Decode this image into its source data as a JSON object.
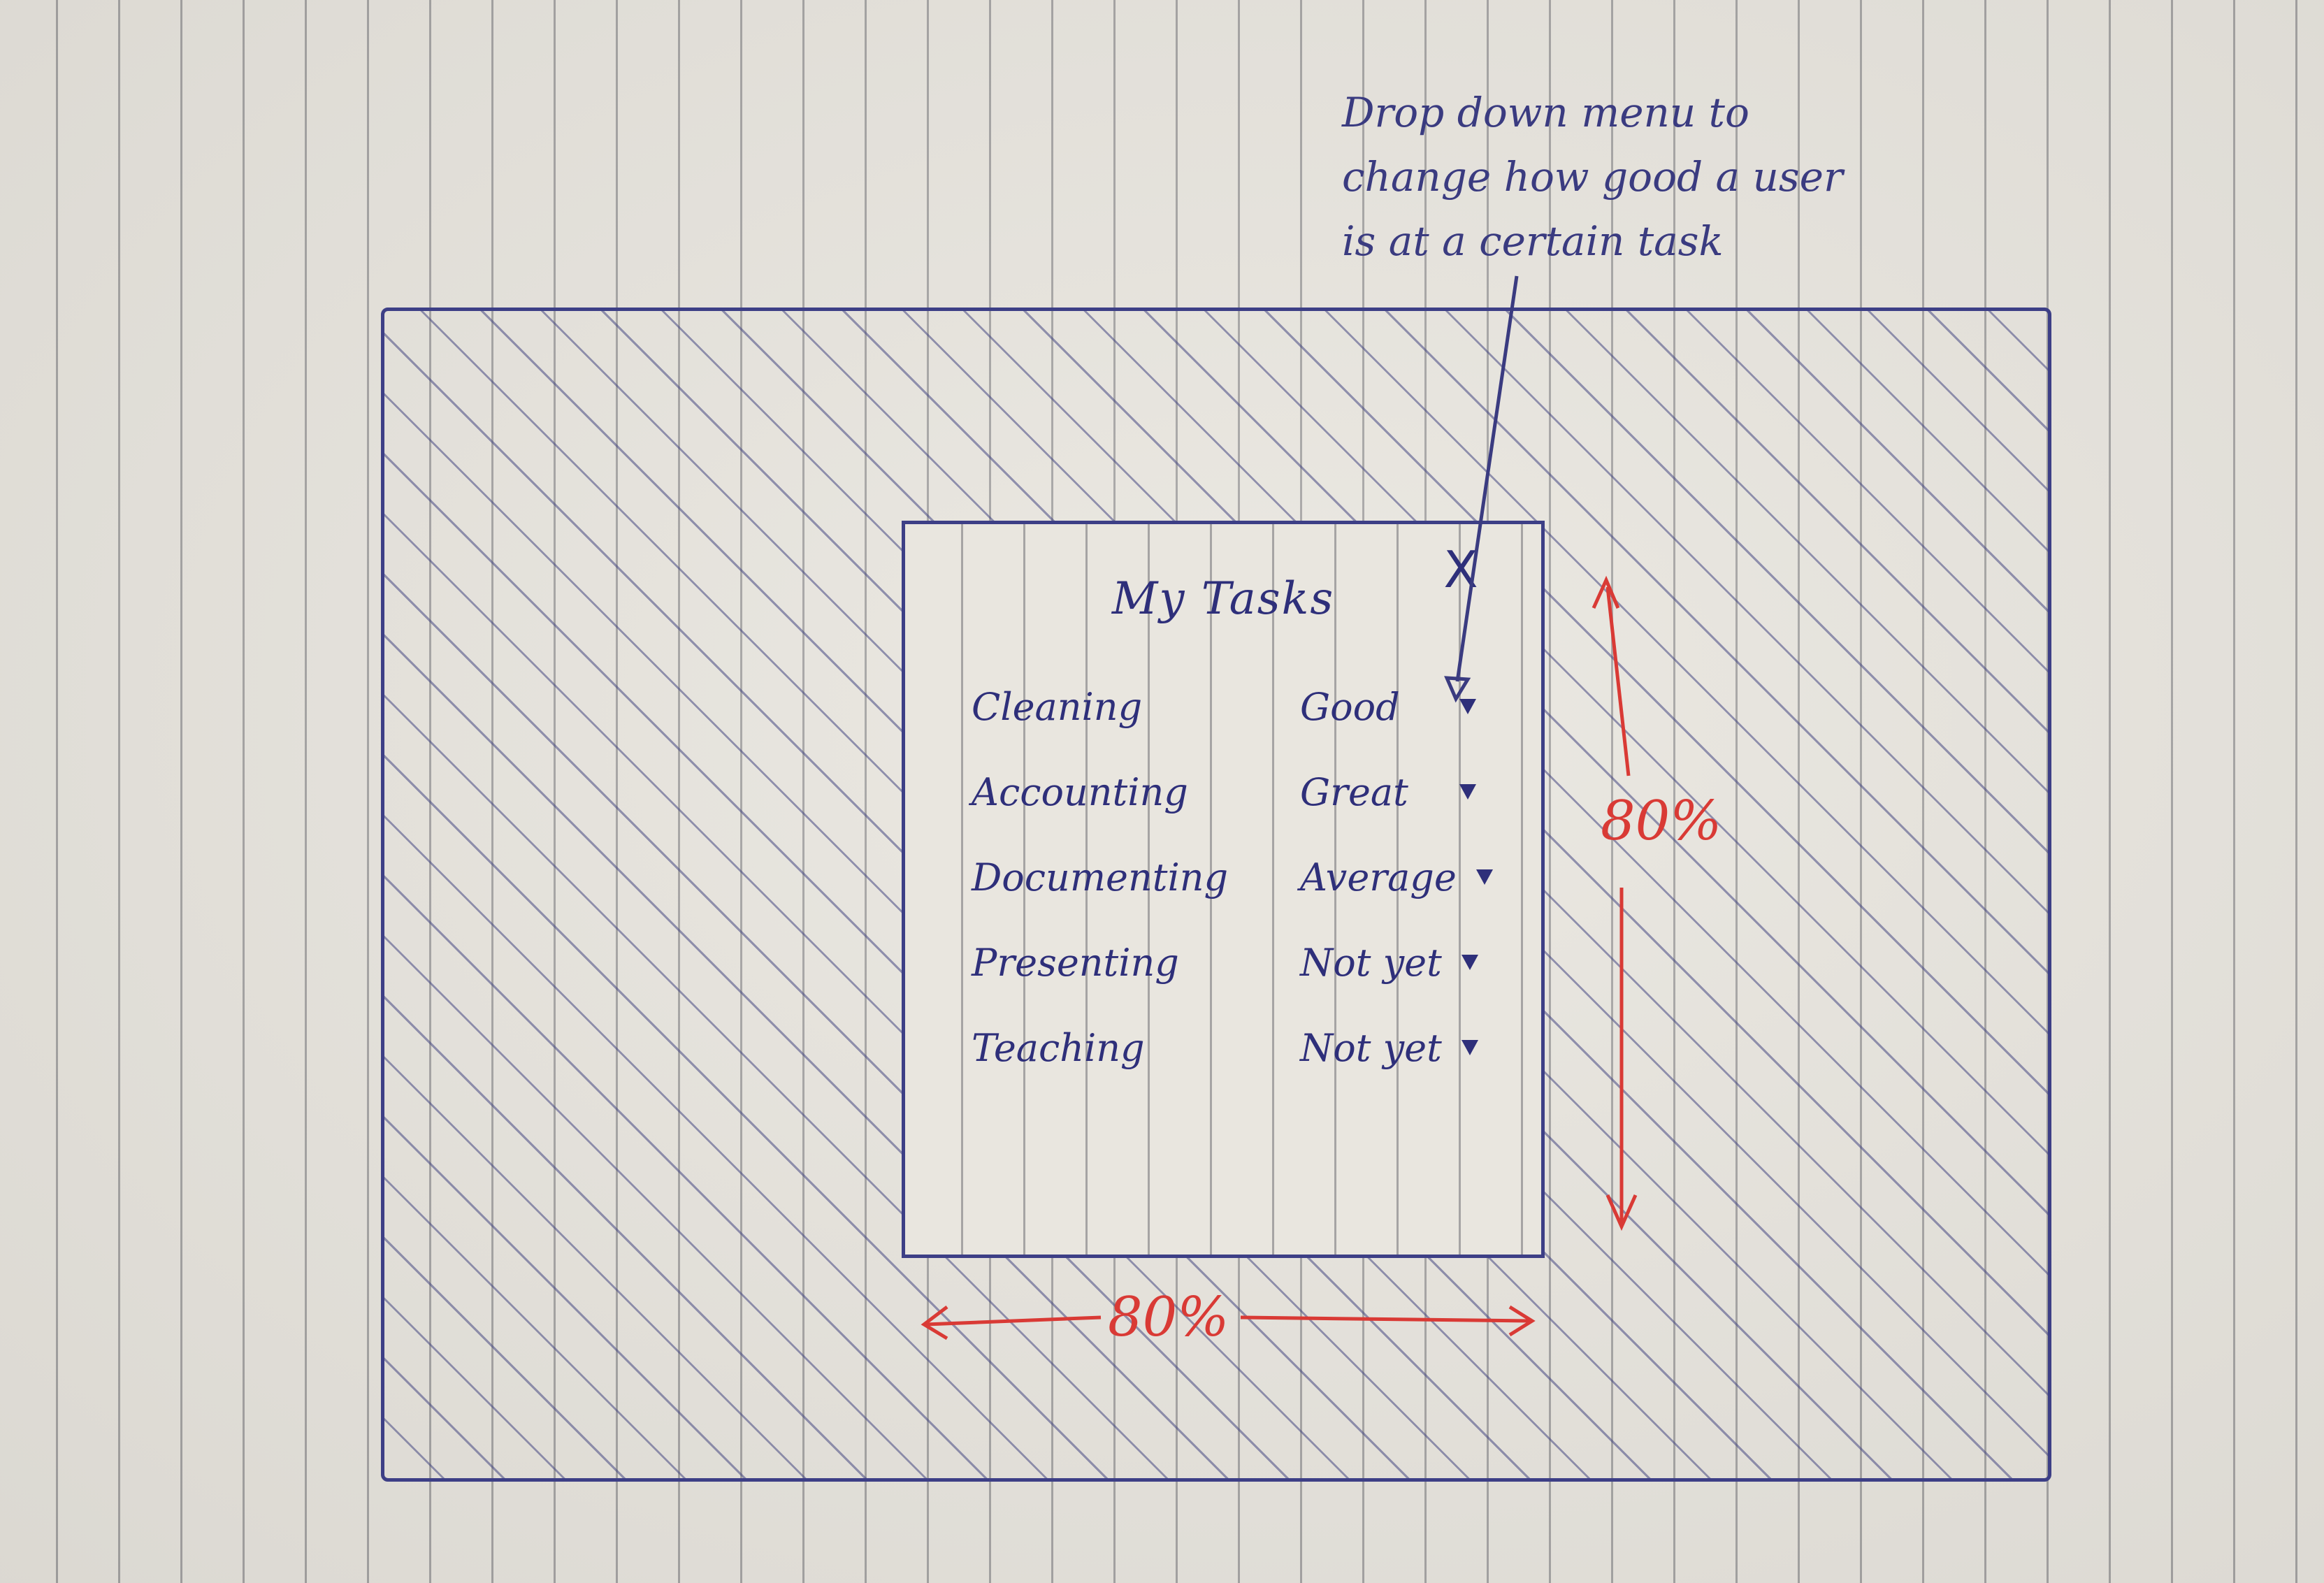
{
  "modal": {
    "title": "My Tasks",
    "close_label": "X",
    "tasks": [
      {
        "name": "Cleaning",
        "level": "Good"
      },
      {
        "name": "Accounting",
        "level": "Great"
      },
      {
        "name": "Documenting",
        "level": "Average"
      },
      {
        "name": "Presenting",
        "level": "Not yet"
      },
      {
        "name": "Teaching",
        "level": "Not yet"
      }
    ]
  },
  "annotations": {
    "dropdown_note": "Drop down menu to change how good a user is at a certain task",
    "height_label": "80%",
    "width_label": "80%"
  },
  "colors": {
    "ink_blue": "#2e2f7a",
    "ink_red": "#d93a35",
    "paper": "#e9e6df"
  }
}
